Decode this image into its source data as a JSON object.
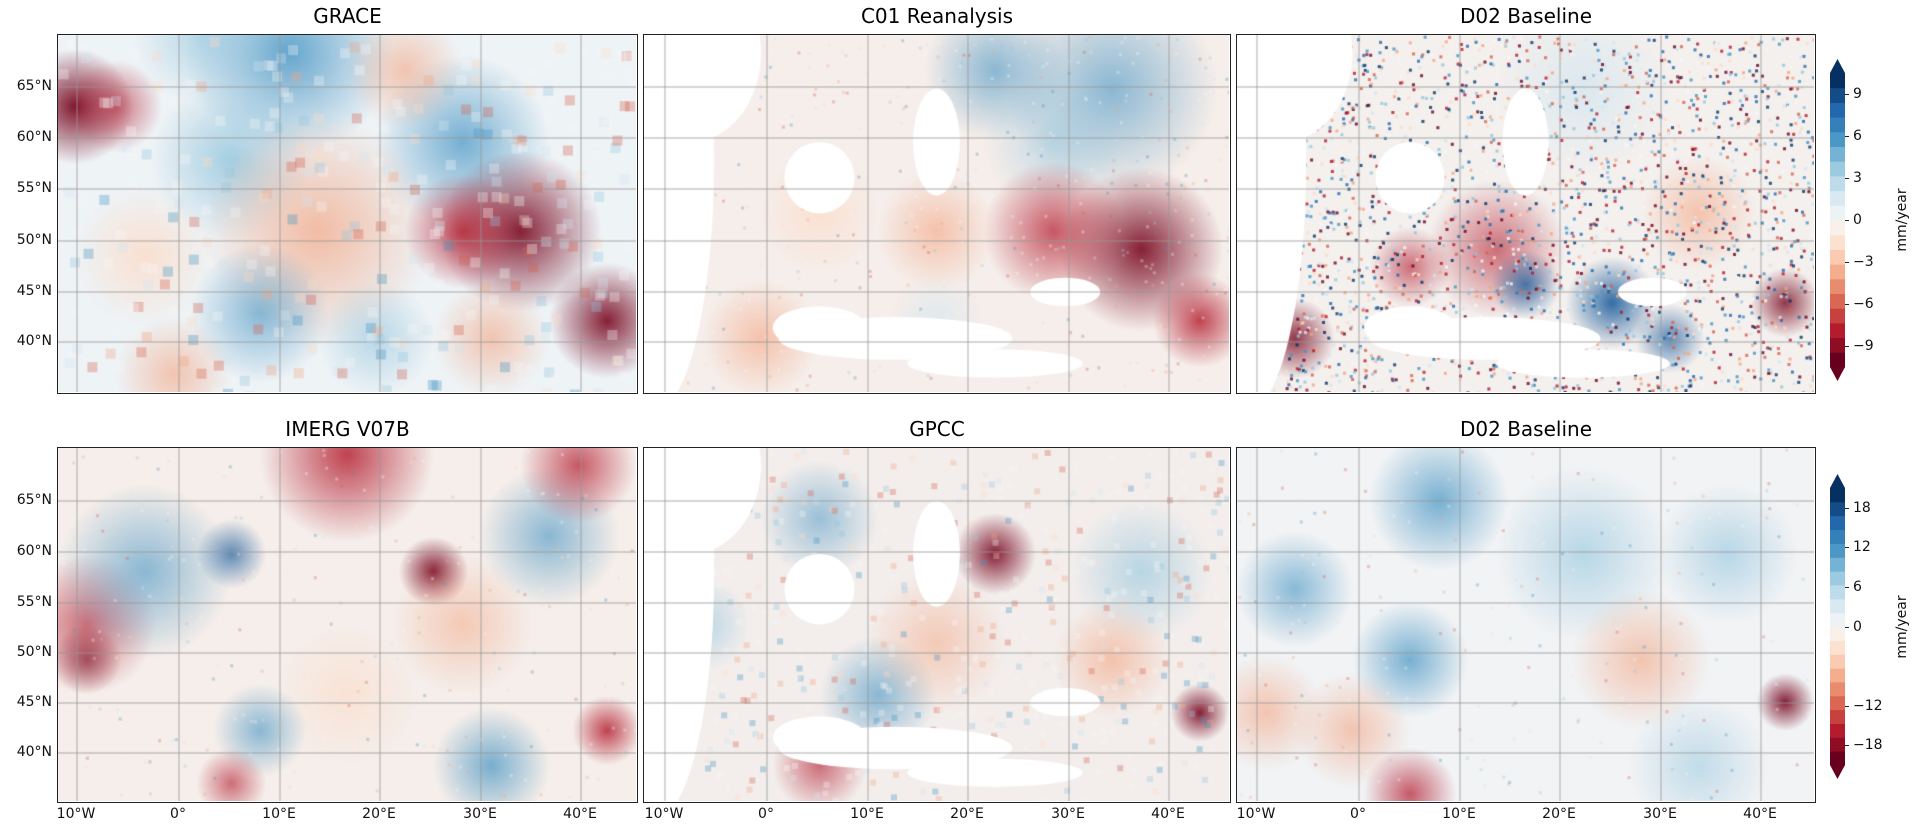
{
  "figure": {
    "rows": [
      {
        "panels": [
          {
            "title": "GRACE",
            "style": "smooth-coarse"
          },
          {
            "title": "C01 Reanalysis",
            "style": "land-only"
          },
          {
            "title": "D02 Baseline",
            "style": "land-only-noisy"
          }
        ],
        "colorbar": {
          "label": "mm/year",
          "ticks": [
            "9",
            "6",
            "3",
            "0",
            "−3",
            "−6",
            "−9"
          ],
          "range": [
            -10.5,
            10.5
          ],
          "extend": "both",
          "levels": 20
        }
      },
      {
        "panels": [
          {
            "title": "IMERG V07B",
            "style": "smooth"
          },
          {
            "title": "GPCC",
            "style": "land-coarse"
          },
          {
            "title": "D02 Baseline",
            "style": "smooth"
          }
        ],
        "colorbar": {
          "label": "mm/year",
          "ticks": [
            "18",
            "12",
            "6",
            "0",
            "−12",
            "−18"
          ],
          "range": [
            -21,
            21
          ],
          "extend": "both",
          "levels": 20
        }
      }
    ],
    "lat_labels": [
      "65°N",
      "60°N",
      "55°N",
      "50°N",
      "45°N",
      "40°N"
    ],
    "lon_labels": [
      "10°W",
      "0°",
      "10°E",
      "20°E",
      "30°E",
      "40°E"
    ],
    "colormap": [
      "#67001f",
      "#b2182b",
      "#d6604d",
      "#f4a582",
      "#fddbc7",
      "#f7f7f7",
      "#d1e5f0",
      "#92c5de",
      "#4393c3",
      "#2166ac",
      "#053061"
    ]
  }
}
